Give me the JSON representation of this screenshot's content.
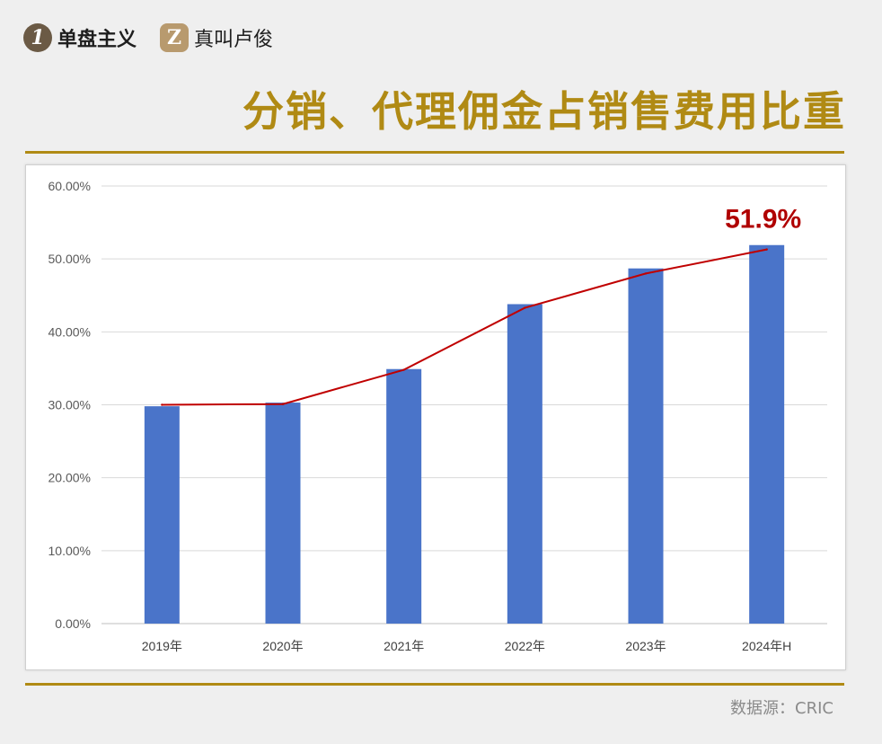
{
  "brand": {
    "logo1_glyph": "1",
    "name1": "单盘主义",
    "logo2_glyph": "Z",
    "name2": "真叫卢俊"
  },
  "title": "分销、代理佣金占销售费用比重",
  "source": "数据源：CRIC",
  "colors": {
    "bar": "#4a74c9",
    "line": "#c00000",
    "title": "#b08a14",
    "highlight": "#b00000"
  },
  "chart_data": {
    "type": "bar",
    "categories": [
      "2019年",
      "2020年",
      "2021年",
      "2022年",
      "2023年",
      "2024年H"
    ],
    "series": [
      {
        "type": "bar",
        "values": [
          29.8,
          30.3,
          34.9,
          43.8,
          48.7,
          51.9
        ]
      },
      {
        "type": "line",
        "values": [
          30.0,
          30.1,
          34.8,
          43.3,
          48.0,
          51.3
        ]
      }
    ],
    "ylim": [
      0,
      60
    ],
    "yticks": [
      "0.00%",
      "10.00%",
      "20.00%",
      "30.00%",
      "40.00%",
      "50.00%",
      "60.00%"
    ],
    "ytick_values": [
      0,
      10,
      20,
      30,
      40,
      50,
      60
    ],
    "grid": true,
    "annotation": {
      "text": "51.9%",
      "category_index": 5
    }
  }
}
